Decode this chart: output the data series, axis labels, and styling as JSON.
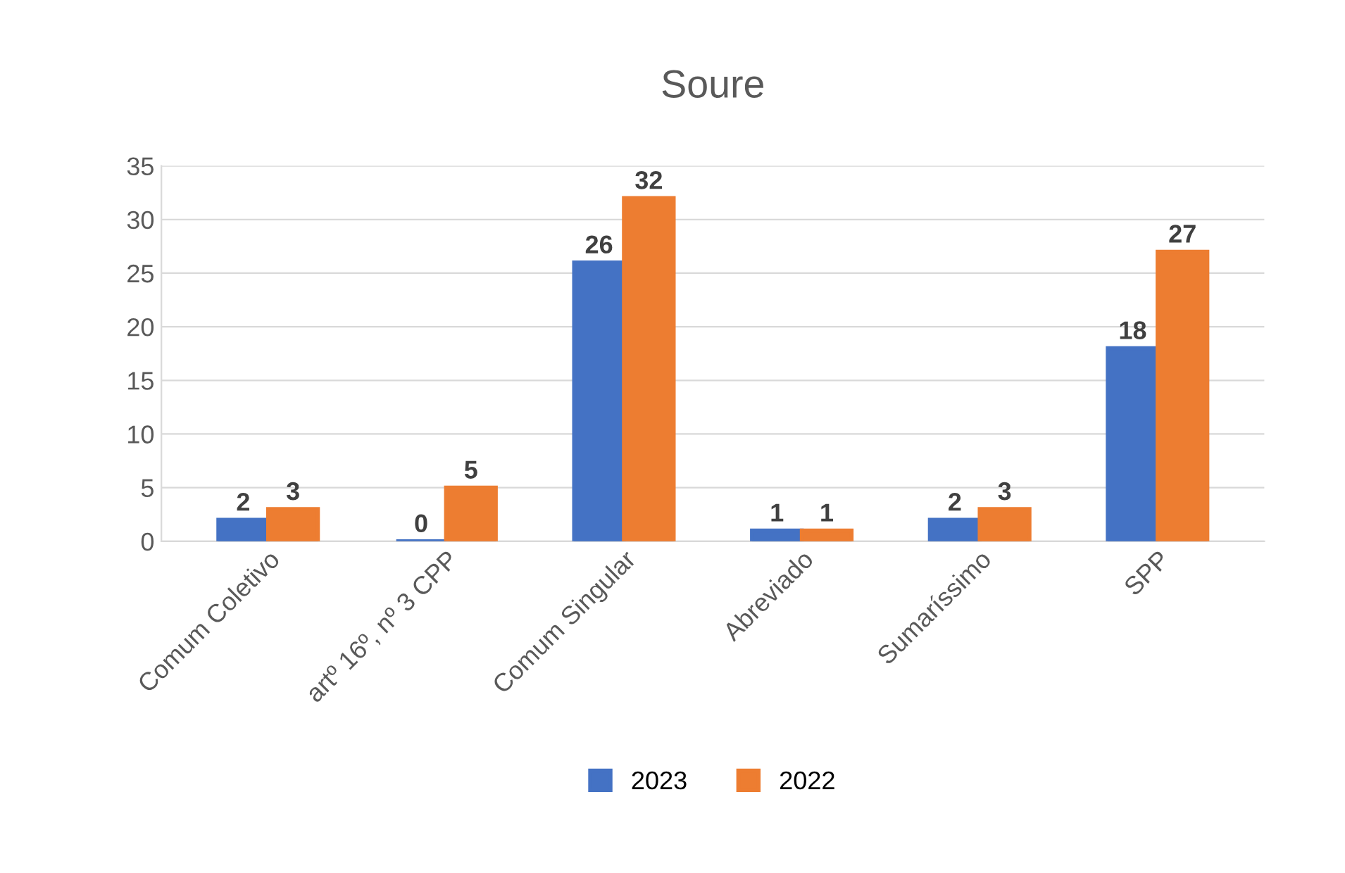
{
  "chart_data": {
    "type": "bar",
    "title": "Soure",
    "categories": [
      "Comum Coletivo",
      "artº 16º, nº 3 CPP",
      "Comum Singular",
      "Abreviado",
      "Sumaríssimo",
      "SPP"
    ],
    "series": [
      {
        "name": "2023",
        "color": "#4472c4",
        "values": [
          2,
          0,
          26,
          1,
          2,
          18
        ]
      },
      {
        "name": "2022",
        "color": "#ed7d31",
        "values": [
          3,
          5,
          32,
          1,
          3,
          27
        ]
      }
    ],
    "ylim": [
      0,
      35
    ],
    "yticks": [
      0,
      5,
      10,
      15,
      20,
      25,
      30,
      35
    ],
    "grid": "y",
    "legend": "bottom",
    "data_labels": true
  }
}
